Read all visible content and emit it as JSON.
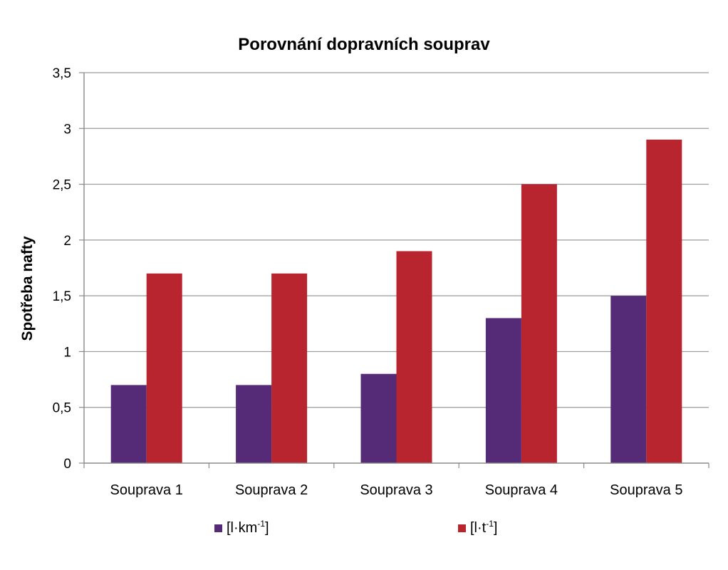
{
  "chart_data": {
    "type": "bar",
    "title": "Porovnání dopravních souprav",
    "xlabel": "",
    "ylabel": "Spotřeba nafty",
    "categories": [
      "Souprava 1",
      "Souprava 2",
      "Souprava 3",
      "Souprava 4",
      "Souprava 5"
    ],
    "series": [
      {
        "name": "[l·km-1]",
        "base": "[l·km",
        "sup": "-1",
        "close": "]",
        "color": "#552a76",
        "values": [
          0.7,
          0.7,
          0.8,
          1.3,
          1.5
        ]
      },
      {
        "name": "[l·t-1]",
        "base": "[l·t",
        "sup": "-1",
        "close": "]",
        "color": "#b8252e",
        "values": [
          1.7,
          1.7,
          1.9,
          2.5,
          2.9
        ]
      }
    ],
    "ylim": [
      0,
      3.5
    ],
    "yticks": [
      0,
      0.5,
      1,
      1.5,
      2,
      2.5,
      3,
      3.5
    ],
    "ytick_labels": [
      "0",
      "0,5",
      "1",
      "1,5",
      "2",
      "2,5",
      "3",
      "3,5"
    ],
    "grid": true,
    "legend_position": "bottom"
  }
}
